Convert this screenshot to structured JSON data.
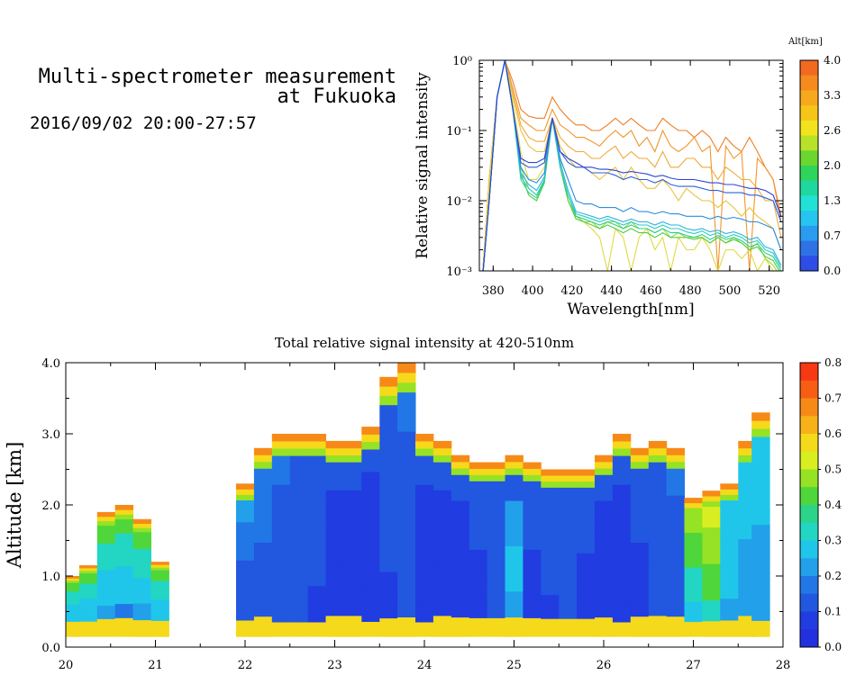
{
  "header": {
    "title_line1": "Multi-spectrometer measurement",
    "title_line2": "at Fukuoka",
    "datetime": "2016/09/02 20:00-27:57"
  },
  "chart_data": [
    {
      "type": "line",
      "name": "spectra",
      "xlabel": "Wavelength[nm]",
      "ylabel": "Relative signal intensity",
      "ylog": true,
      "xlim": [
        373,
        527
      ],
      "ylim": [
        0.001,
        1
      ],
      "x_ticks": [
        380,
        400,
        420,
        440,
        460,
        480,
        500,
        520
      ],
      "y_ticks": [
        "10⁻³",
        "10⁻²",
        "10⁻¹",
        "10⁰"
      ],
      "y_tick_values": [
        0.001,
        0.01,
        0.1,
        1
      ],
      "colorbar": {
        "title": "Alt[km]",
        "labels": [
          "4.0",
          "3.3",
          "2.6",
          "2.0",
          "1.3",
          "0.7",
          "0.0"
        ],
        "colors": [
          "#f26a1f",
          "#f58a1e",
          "#f7a91d",
          "#f7c51a",
          "#f3e31c",
          "#b8e22a",
          "#6ad62e",
          "#2fd45a",
          "#1fd8a0",
          "#22e2d6",
          "#26c5ef",
          "#2a9cef",
          "#2d73e6",
          "#2c4ee6"
        ]
      },
      "x": [
        374,
        378,
        382,
        386,
        390,
        394,
        398,
        402,
        406,
        410,
        414,
        418,
        422,
        426,
        430,
        434,
        438,
        442,
        446,
        450,
        454,
        458,
        462,
        466,
        470,
        474,
        478,
        482,
        486,
        490,
        494,
        498,
        502,
        506,
        510,
        514,
        518,
        522,
        526
      ],
      "series": [
        {
          "color": "#ef7d23",
          "values": [
            0.0005,
            0.02,
            0.3,
            1.0,
            0.5,
            0.2,
            0.16,
            0.15,
            0.15,
            0.3,
            0.2,
            0.15,
            0.12,
            0.12,
            0.1,
            0.1,
            0.12,
            0.15,
            0.12,
            0.15,
            0.12,
            0.1,
            0.1,
            0.15,
            0.12,
            0.1,
            0.1,
            0.08,
            0.1,
            0.08,
            0.05,
            0.08,
            0.06,
            0.05,
            0.08,
            0.05,
            0.03,
            0.02,
            0.006
          ]
        },
        {
          "color": "#f1962a",
          "values": [
            0.0005,
            0.02,
            0.3,
            1.0,
            0.4,
            0.15,
            0.12,
            0.1,
            0.1,
            0.2,
            0.12,
            0.1,
            0.08,
            0.08,
            0.07,
            0.06,
            0.08,
            0.1,
            0.08,
            0.1,
            0.06,
            0.08,
            0.05,
            0.1,
            0.06,
            0.05,
            0.06,
            0.08,
            0.05,
            0.06,
            0.001,
            0.06,
            0.04,
            0.05,
            0.001,
            0.04,
            0.03,
            0.02,
            0.005
          ]
        },
        {
          "color": "#f0a93a",
          "values": [
            0.0005,
            0.02,
            0.3,
            1.0,
            0.35,
            0.12,
            0.08,
            0.07,
            0.07,
            0.15,
            0.08,
            0.06,
            0.05,
            0.05,
            0.04,
            0.04,
            0.05,
            0.06,
            0.04,
            0.05,
            0.04,
            0.04,
            0.03,
            0.05,
            0.03,
            0.03,
            0.04,
            0.04,
            0.03,
            0.03,
            0.02,
            0.03,
            0.025,
            0.02,
            0.02,
            0.015,
            0.01,
            0.01,
            0.003
          ]
        },
        {
          "color": "#e9c33d",
          "values": [
            0.0005,
            0.02,
            0.3,
            1.0,
            0.3,
            0.1,
            0.06,
            0.05,
            0.05,
            0.15,
            0.06,
            0.04,
            0.03,
            0.03,
            0.025,
            0.02,
            0.025,
            0.03,
            0.02,
            0.03,
            0.02,
            0.015,
            0.015,
            0.02,
            0.015,
            0.01,
            0.015,
            0.012,
            0.01,
            0.01,
            0.008,
            0.01,
            0.008,
            0.006,
            0.008,
            0.006,
            0.005,
            0.004,
            0.002
          ]
        },
        {
          "color": "#e2d944",
          "values": [
            0.0005,
            0.015,
            0.3,
            1.0,
            0.25,
            0.05,
            0.02,
            0.02,
            0.03,
            0.15,
            0.04,
            0.01,
            0.006,
            0.005,
            0.004,
            0.003,
            0.001,
            0.004,
            0.003,
            0.001,
            0.003,
            0.004,
            0.002,
            0.003,
            0.001,
            0.003,
            0.002,
            0.002,
            0.003,
            0.002,
            0.001,
            0.002,
            0.002,
            0.0015,
            0.002,
            0.001,
            0.0015,
            0.001,
            0.0008
          ]
        },
        {
          "color": "#9fd63a",
          "values": [
            0.0005,
            0.01,
            0.3,
            1.0,
            0.2,
            0.03,
            0.015,
            0.012,
            0.02,
            0.15,
            0.03,
            0.01,
            0.006,
            0.005,
            0.005,
            0.004,
            0.005,
            0.005,
            0.004,
            0.005,
            0.004,
            0.004,
            0.0035,
            0.004,
            0.003,
            0.0035,
            0.003,
            0.003,
            0.003,
            0.0025,
            0.003,
            0.0025,
            0.003,
            0.0025,
            0.002,
            0.0025,
            0.0015,
            0.0012,
            0.0008
          ]
        },
        {
          "color": "#4ccf3d",
          "values": [
            0.0005,
            0.01,
            0.3,
            1.0,
            0.2,
            0.025,
            0.012,
            0.01,
            0.018,
            0.15,
            0.03,
            0.01,
            0.0055,
            0.005,
            0.0045,
            0.004,
            0.0045,
            0.004,
            0.0035,
            0.004,
            0.0035,
            0.0035,
            0.003,
            0.0035,
            0.003,
            0.003,
            0.003,
            0.0028,
            0.003,
            0.0025,
            0.003,
            0.0025,
            0.0028,
            0.0025,
            0.002,
            0.0022,
            0.0016,
            0.0014,
            0.0009
          ]
        },
        {
          "color": "#2fcf86",
          "values": [
            0.0005,
            0.01,
            0.3,
            1.0,
            0.2,
            0.02,
            0.013,
            0.011,
            0.019,
            0.15,
            0.03,
            0.012,
            0.006,
            0.0055,
            0.005,
            0.0045,
            0.005,
            0.0045,
            0.004,
            0.0045,
            0.004,
            0.004,
            0.0035,
            0.004,
            0.0035,
            0.0035,
            0.0032,
            0.003,
            0.0033,
            0.0028,
            0.0032,
            0.0028,
            0.003,
            0.0027,
            0.0022,
            0.0024,
            0.0018,
            0.0016,
            0.001
          ]
        },
        {
          "color": "#28cdc2",
          "values": [
            0.0005,
            0.01,
            0.3,
            1.0,
            0.2,
            0.022,
            0.015,
            0.012,
            0.02,
            0.15,
            0.03,
            0.012,
            0.0065,
            0.006,
            0.0055,
            0.005,
            0.0055,
            0.005,
            0.0045,
            0.005,
            0.0045,
            0.0045,
            0.004,
            0.0045,
            0.004,
            0.004,
            0.0036,
            0.0034,
            0.0037,
            0.0032,
            0.0035,
            0.003,
            0.0033,
            0.003,
            0.0025,
            0.0027,
            0.002,
            0.0018,
            0.0011
          ]
        },
        {
          "color": "#2ab3e3",
          "values": [
            0.0005,
            0.01,
            0.3,
            1.0,
            0.2,
            0.025,
            0.017,
            0.014,
            0.022,
            0.15,
            0.035,
            0.014,
            0.007,
            0.0065,
            0.006,
            0.0055,
            0.006,
            0.0055,
            0.005,
            0.0055,
            0.005,
            0.005,
            0.0045,
            0.005,
            0.0045,
            0.0045,
            0.004,
            0.0038,
            0.004,
            0.0036,
            0.0038,
            0.0034,
            0.0036,
            0.0033,
            0.0028,
            0.003,
            0.0022,
            0.002,
            0.0012
          ]
        },
        {
          "color": "#2b8ee0",
          "values": [
            0.0005,
            0.01,
            0.3,
            1.0,
            0.2,
            0.03,
            0.02,
            0.018,
            0.025,
            0.15,
            0.04,
            0.02,
            0.01,
            0.009,
            0.009,
            0.008,
            0.008,
            0.008,
            0.007,
            0.008,
            0.007,
            0.007,
            0.0065,
            0.007,
            0.0065,
            0.0065,
            0.006,
            0.006,
            0.006,
            0.0055,
            0.006,
            0.0055,
            0.0058,
            0.0055,
            0.005,
            0.005,
            0.0045,
            0.004,
            0.002
          ]
        },
        {
          "color": "#2c62d7",
          "values": [
            0.0005,
            0.01,
            0.3,
            1.0,
            0.2,
            0.035,
            0.03,
            0.03,
            0.035,
            0.15,
            0.05,
            0.035,
            0.03,
            0.03,
            0.025,
            0.025,
            0.025,
            0.023,
            0.02,
            0.022,
            0.02,
            0.02,
            0.018,
            0.02,
            0.017,
            0.016,
            0.016,
            0.016,
            0.015,
            0.014,
            0.014,
            0.013,
            0.013,
            0.013,
            0.012,
            0.012,
            0.011,
            0.01,
            0.005
          ]
        },
        {
          "color": "#2b44d6",
          "values": [
            0.0005,
            0.01,
            0.3,
            1.0,
            0.2,
            0.04,
            0.035,
            0.035,
            0.04,
            0.15,
            0.05,
            0.04,
            0.035,
            0.03,
            0.03,
            0.028,
            0.028,
            0.027,
            0.025,
            0.026,
            0.025,
            0.024,
            0.022,
            0.023,
            0.021,
            0.02,
            0.02,
            0.02,
            0.019,
            0.018,
            0.018,
            0.017,
            0.017,
            0.016,
            0.015,
            0.015,
            0.014,
            0.012,
            0.006
          ]
        }
      ]
    },
    {
      "type": "heatmap",
      "name": "profile",
      "title": "Total relative signal intensity at 420-510nm",
      "ylabel": "Altitude [km]",
      "xlim": [
        20,
        28
      ],
      "ylim": [
        0,
        4
      ],
      "x_ticks": [
        20,
        21,
        22,
        23,
        24,
        25,
        26,
        27,
        28
      ],
      "y_ticks": [
        "0.0",
        "1.0",
        "2.0",
        "3.0",
        "4.0"
      ],
      "colorbar": {
        "labels": [
          "0.8",
          "0.7",
          "0.6",
          "0.5",
          "0.4",
          "0.3",
          "0.2",
          "0.1",
          "0.0"
        ],
        "colors": [
          "#f73812",
          "#f75e14",
          "#f78a17",
          "#f7b21a",
          "#f5d91b",
          "#d9ee20",
          "#96e224",
          "#4fd63b",
          "#2bd489",
          "#22d6c3",
          "#20c6ea",
          "#22a0ea",
          "#2277e6",
          "#2257e0",
          "#213ce0",
          "#2230df"
        ]
      },
      "columns": [
        {
          "t": 20.05,
          "top": 1.0,
          "int": [
            0.25,
            0.3,
            0.35,
            0.4
          ]
        },
        {
          "t": 20.25,
          "top": 1.15,
          "int": [
            0.25,
            0.3,
            0.35,
            0.4
          ]
        },
        {
          "t": 20.45,
          "top": 1.9,
          "int": [
            0.2,
            0.3,
            0.35,
            0.4
          ]
        },
        {
          "t": 20.65,
          "top": 2.0,
          "int": [
            0.18,
            0.3,
            0.35,
            0.4
          ]
        },
        {
          "t": 20.85,
          "top": 1.8,
          "int": [
            0.2,
            0.3,
            0.35,
            0.4
          ]
        },
        {
          "t": 21.05,
          "top": 1.2,
          "int": [
            0.25,
            0.3,
            0.35,
            0.4
          ]
        },
        {
          "t": 22.0,
          "top": 2.3,
          "int": [
            0.15,
            0.15,
            0.18,
            0.2
          ]
        },
        {
          "t": 22.2,
          "top": 2.8,
          "int": [
            0.12,
            0.13,
            0.16,
            0.18
          ]
        },
        {
          "t": 22.4,
          "top": 3.0,
          "int": [
            0.1,
            0.12,
            0.14,
            0.16
          ]
        },
        {
          "t": 22.6,
          "top": 3.0,
          "int": [
            0.1,
            0.15,
            0.12,
            0.12
          ]
        },
        {
          "t": 22.8,
          "top": 3.0,
          "int": [
            0.08,
            0.1,
            0.1,
            0.12
          ]
        },
        {
          "t": 23.0,
          "top": 2.9,
          "int": [
            0.08,
            0.08,
            0.08,
            0.1
          ]
        },
        {
          "t": 23.2,
          "top": 2.9,
          "int": [
            0.08,
            0.08,
            0.08,
            0.1
          ]
        },
        {
          "t": 23.4,
          "top": 3.1,
          "int": [
            0.07,
            0.07,
            0.08,
            0.1
          ]
        },
        {
          "t": 23.6,
          "top": 3.8,
          "int": [
            0.08,
            0.1,
            0.12,
            0.15
          ]
        },
        {
          "t": 23.8,
          "top": 4.0,
          "int": [
            0.1,
            0.12,
            0.14,
            0.16
          ]
        },
        {
          "t": 24.0,
          "top": 3.0,
          "int": [
            0.08,
            0.08,
            0.08,
            0.1
          ]
        },
        {
          "t": 24.2,
          "top": 2.9,
          "int": [
            0.07,
            0.07,
            0.08,
            0.1
          ]
        },
        {
          "t": 24.4,
          "top": 2.7,
          "int": [
            0.07,
            0.07,
            0.08,
            0.1
          ]
        },
        {
          "t": 24.6,
          "top": 2.6,
          "int": [
            0.08,
            0.08,
            0.1,
            0.12
          ]
        },
        {
          "t": 24.8,
          "top": 2.6,
          "int": [
            0.1,
            0.1,
            0.12,
            0.14
          ]
        },
        {
          "t": 25.0,
          "top": 2.7,
          "int": [
            0.2,
            0.25,
            0.2,
            0.15
          ]
        },
        {
          "t": 25.2,
          "top": 2.6,
          "int": [
            0.08,
            0.08,
            0.1,
            0.12
          ]
        },
        {
          "t": 25.4,
          "top": 2.5,
          "int": [
            0.08,
            0.1,
            0.1,
            0.12
          ]
        },
        {
          "t": 25.6,
          "top": 2.5,
          "int": [
            0.12,
            0.15,
            0.15,
            0.14
          ]
        },
        {
          "t": 25.8,
          "top": 2.5,
          "int": [
            0.08,
            0.08,
            0.1,
            0.12
          ]
        },
        {
          "t": 26.0,
          "top": 2.7,
          "int": [
            0.07,
            0.07,
            0.08,
            0.1
          ]
        },
        {
          "t": 26.2,
          "top": 3.0,
          "int": [
            0.07,
            0.07,
            0.08,
            0.1
          ]
        },
        {
          "t": 26.4,
          "top": 2.8,
          "int": [
            0.08,
            0.08,
            0.1,
            0.12
          ]
        },
        {
          "t": 26.6,
          "top": 2.9,
          "int": [
            0.1,
            0.1,
            0.12,
            0.14
          ]
        },
        {
          "t": 26.8,
          "top": 2.8,
          "int": [
            0.12,
            0.12,
            0.14,
            0.16
          ]
        },
        {
          "t": 27.0,
          "top": 2.1,
          "int": [
            0.3,
            0.35,
            0.4,
            0.45
          ]
        },
        {
          "t": 27.2,
          "top": 2.2,
          "int": [
            0.35,
            0.4,
            0.45,
            0.5
          ]
        },
        {
          "t": 27.4,
          "top": 2.3,
          "int": [
            0.2,
            0.25,
            0.3,
            0.3
          ]
        },
        {
          "t": 27.6,
          "top": 2.9,
          "int": [
            0.2,
            0.2,
            0.25,
            0.3
          ]
        },
        {
          "t": 27.75,
          "top": 3.3,
          "int": [
            0.2,
            0.2,
            0.25,
            0.3
          ]
        }
      ]
    }
  ]
}
